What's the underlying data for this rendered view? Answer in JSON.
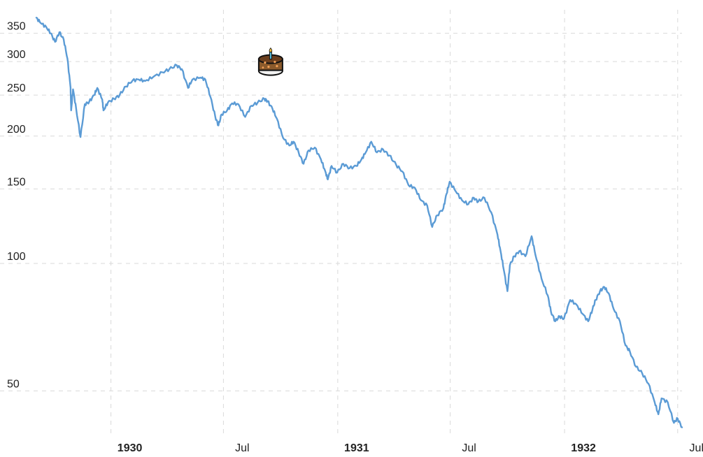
{
  "chart_data": {
    "type": "line",
    "title": "",
    "xlabel": "",
    "ylabel": "",
    "scale": "log",
    "grid": true,
    "xlim": [
      "1929-09-03",
      "1932-07-08"
    ],
    "ylim": [
      40,
      380
    ],
    "y_ticks": [
      50,
      100,
      150,
      200,
      250,
      300,
      350
    ],
    "x_ticks": [
      {
        "date": "1930-01-01",
        "label": "1930",
        "bold": true
      },
      {
        "date": "1930-07-01",
        "label": "Jul",
        "bold": false
      },
      {
        "date": "1931-01-01",
        "label": "1931",
        "bold": true
      },
      {
        "date": "1931-07-01",
        "label": "Jul",
        "bold": false
      },
      {
        "date": "1932-01-01",
        "label": "1932",
        "bold": true
      },
      {
        "date": "1932-07-01",
        "label": "Jul",
        "bold": false
      }
    ],
    "annotation": {
      "icon": "birthday-cake-icon",
      "date": "1930-09-15",
      "y": 295
    },
    "series": [
      {
        "color": "#5b9bd5",
        "points": [
          [
            "1929-09-03",
            381
          ],
          [
            "1929-09-10",
            370
          ],
          [
            "1929-09-19",
            362
          ],
          [
            "1929-09-26",
            350
          ],
          [
            "1929-10-03",
            334
          ],
          [
            "1929-10-10",
            352
          ],
          [
            "1929-10-17",
            338
          ],
          [
            "1929-10-23",
            305
          ],
          [
            "1929-10-28",
            260
          ],
          [
            "1929-10-29",
            230
          ],
          [
            "1929-11-01",
            258
          ],
          [
            "1929-11-06",
            232
          ],
          [
            "1929-11-13",
            199
          ],
          [
            "1929-11-20",
            238
          ],
          [
            "1929-11-27",
            241
          ],
          [
            "1929-12-05",
            250
          ],
          [
            "1929-12-10",
            260
          ],
          [
            "1929-12-18",
            244
          ],
          [
            "1929-12-20",
            230
          ],
          [
            "1929-12-27",
            240
          ],
          [
            "1930-01-06",
            245
          ],
          [
            "1930-01-15",
            250
          ],
          [
            "1930-01-25",
            262
          ],
          [
            "1930-02-05",
            271
          ],
          [
            "1930-02-15",
            272
          ],
          [
            "1930-02-25",
            270
          ],
          [
            "1930-03-10",
            276
          ],
          [
            "1930-03-25",
            283
          ],
          [
            "1930-04-05",
            288
          ],
          [
            "1930-04-17",
            294
          ],
          [
            "1930-04-25",
            288
          ],
          [
            "1930-05-05",
            260
          ],
          [
            "1930-05-12",
            272
          ],
          [
            "1930-05-25",
            275
          ],
          [
            "1930-06-02",
            272
          ],
          [
            "1930-06-10",
            248
          ],
          [
            "1930-06-18",
            222
          ],
          [
            "1930-06-23",
            212
          ],
          [
            "1930-06-28",
            225
          ],
          [
            "1930-07-07",
            230
          ],
          [
            "1930-07-15",
            239
          ],
          [
            "1930-07-25",
            238
          ],
          [
            "1930-08-05",
            222
          ],
          [
            "1930-08-15",
            236
          ],
          [
            "1930-08-25",
            240
          ],
          [
            "1930-09-05",
            245
          ],
          [
            "1930-09-10",
            242
          ],
          [
            "1930-09-18",
            232
          ],
          [
            "1930-09-25",
            220
          ],
          [
            "1930-10-05",
            198
          ],
          [
            "1930-10-15",
            190
          ],
          [
            "1930-10-22",
            194
          ],
          [
            "1930-10-30",
            183
          ],
          [
            "1930-11-07",
            172
          ],
          [
            "1930-11-15",
            185
          ],
          [
            "1930-11-25",
            188
          ],
          [
            "1930-12-05",
            176
          ],
          [
            "1930-12-12",
            165
          ],
          [
            "1930-12-16",
            158
          ],
          [
            "1930-12-22",
            170
          ],
          [
            "1930-12-31",
            164
          ],
          [
            "1931-01-10",
            172
          ],
          [
            "1931-01-20",
            168
          ],
          [
            "1931-01-31",
            170
          ],
          [
            "1931-02-08",
            176
          ],
          [
            "1931-02-15",
            183
          ],
          [
            "1931-02-24",
            194
          ],
          [
            "1931-03-05",
            183
          ],
          [
            "1931-03-15",
            186
          ],
          [
            "1931-03-25",
            180
          ],
          [
            "1931-04-05",
            171
          ],
          [
            "1931-04-15",
            165
          ],
          [
            "1931-04-25",
            153
          ],
          [
            "1931-05-05",
            151
          ],
          [
            "1931-05-15",
            141
          ],
          [
            "1931-05-25",
            137
          ],
          [
            "1931-06-02",
            122
          ],
          [
            "1931-06-10",
            130
          ],
          [
            "1931-06-20",
            135
          ],
          [
            "1931-06-25",
            146
          ],
          [
            "1931-06-30",
            156
          ],
          [
            "1931-07-10",
            148
          ],
          [
            "1931-07-20",
            141
          ],
          [
            "1931-07-30",
            138
          ],
          [
            "1931-08-08",
            143
          ],
          [
            "1931-08-15",
            140
          ],
          [
            "1931-08-25",
            143
          ],
          [
            "1931-09-05",
            132
          ],
          [
            "1931-09-15",
            117
          ],
          [
            "1931-09-20",
            107
          ],
          [
            "1931-09-25",
            97
          ],
          [
            "1931-10-01",
            86
          ],
          [
            "1931-10-05",
            99
          ],
          [
            "1931-10-12",
            104
          ],
          [
            "1931-10-20",
            107
          ],
          [
            "1931-10-30",
            104
          ],
          [
            "1931-11-09",
            116
          ],
          [
            "1931-11-15",
            105
          ],
          [
            "1931-11-25",
            92
          ],
          [
            "1931-12-05",
            84
          ],
          [
            "1931-12-10",
            77
          ],
          [
            "1931-12-17",
            73
          ],
          [
            "1931-12-24",
            75
          ],
          [
            "1931-12-31",
            74
          ],
          [
            "1932-01-10",
            82
          ],
          [
            "1932-01-20",
            80
          ],
          [
            "1932-01-30",
            76
          ],
          [
            "1932-02-08",
            73
          ],
          [
            "1932-02-15",
            78
          ],
          [
            "1932-02-20",
            82
          ],
          [
            "1932-02-27",
            86
          ],
          [
            "1932-03-05",
            88
          ],
          [
            "1932-03-12",
            85
          ],
          [
            "1932-03-20",
            78
          ],
          [
            "1932-03-30",
            73
          ],
          [
            "1932-04-08",
            64
          ],
          [
            "1932-04-15",
            62
          ],
          [
            "1932-04-25",
            57
          ],
          [
            "1932-05-05",
            55
          ],
          [
            "1932-05-15",
            52
          ],
          [
            "1932-05-25",
            47
          ],
          [
            "1932-05-31",
            44
          ],
          [
            "1932-06-05",
            48
          ],
          [
            "1932-06-15",
            47
          ],
          [
            "1932-06-25",
            42
          ],
          [
            "1932-07-01",
            43
          ],
          [
            "1932-07-08",
            41
          ]
        ]
      }
    ]
  }
}
